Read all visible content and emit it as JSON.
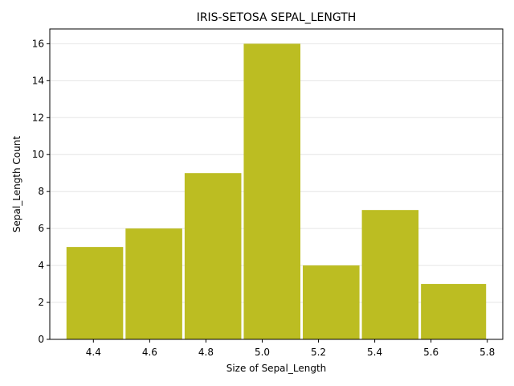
{
  "chart_data": {
    "type": "bar",
    "title": "IRIS-SETOSA SEPAL_LENGTH",
    "xlabel": "Size of Sepal_Length",
    "ylabel": "Sepal_Length Count",
    "bins": [
      {
        "start": 4.3,
        "end": 4.51,
        "count": 5
      },
      {
        "start": 4.51,
        "end": 4.72,
        "count": 6
      },
      {
        "start": 4.72,
        "end": 4.93,
        "count": 9
      },
      {
        "start": 4.93,
        "end": 5.14,
        "count": 16
      },
      {
        "start": 5.14,
        "end": 5.35,
        "count": 4
      },
      {
        "start": 5.35,
        "end": 5.56,
        "count": 7
      },
      {
        "start": 5.56,
        "end": 5.8,
        "count": 3
      }
    ],
    "xlim": [
      4.245,
      5.855
    ],
    "ylim": [
      0,
      16.8
    ],
    "xticks": [
      "4.4",
      "4.6",
      "4.8",
      "5.0",
      "5.2",
      "5.4",
      "5.6",
      "5.8"
    ],
    "yticks": [
      "0",
      "2",
      "4",
      "6",
      "8",
      "10",
      "12",
      "14",
      "16"
    ],
    "bar_color": "#bcbd22",
    "grid": "horizontal",
    "legend": "none"
  }
}
